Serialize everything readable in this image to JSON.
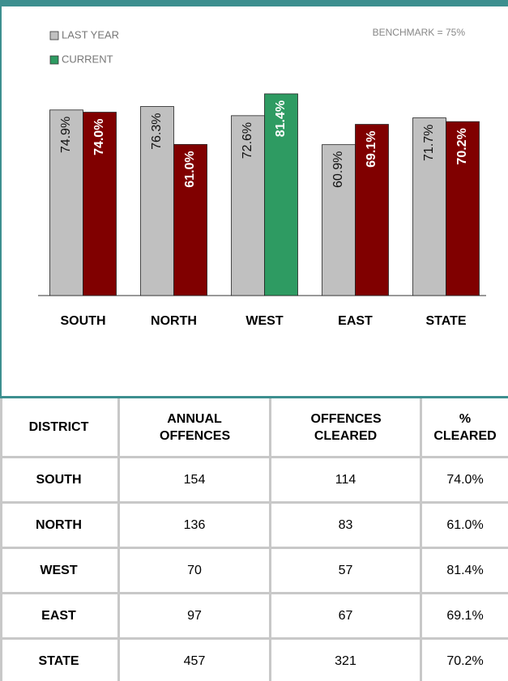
{
  "chart_data": {
    "type": "bar",
    "annotation": "BENCHMARK = 75%",
    "categories": [
      "SOUTH",
      "NORTH",
      "WEST",
      "EAST",
      "STATE"
    ],
    "series": [
      {
        "name": "LAST YEAR",
        "color": "#c0c0c0",
        "values": [
          74.9,
          76.3,
          72.6,
          60.9,
          71.7
        ],
        "value_labels": [
          "74.9%",
          "76.3%",
          "72.6%",
          "60.9%",
          "71.7%"
        ]
      },
      {
        "name": "CURRENT",
        "color": "#2e9b62",
        "colors": [
          "#800000",
          "#800000",
          "#2e9b62",
          "#800000",
          "#800000"
        ],
        "values": [
          74.0,
          61.0,
          81.4,
          69.1,
          70.2
        ],
        "value_labels": [
          "74.0%",
          "61.0%",
          "81.4%",
          "69.1%",
          "70.2%"
        ]
      }
    ],
    "ylim": [
      0,
      100
    ]
  },
  "table": {
    "header": [
      "DISTRICT",
      "ANNUAL OFFENCES",
      "OFFENCES CLEARED",
      "% CLEARED"
    ],
    "rows": [
      [
        "SOUTH",
        "154",
        "114",
        "74.0%"
      ],
      [
        "NORTH",
        "136",
        "83",
        "61.0%"
      ],
      [
        "WEST",
        "70",
        "57",
        "81.4%"
      ],
      [
        "EAST",
        "97",
        "67",
        "69.1%"
      ],
      [
        "STATE",
        "457",
        "321",
        "70.2%"
      ]
    ]
  }
}
